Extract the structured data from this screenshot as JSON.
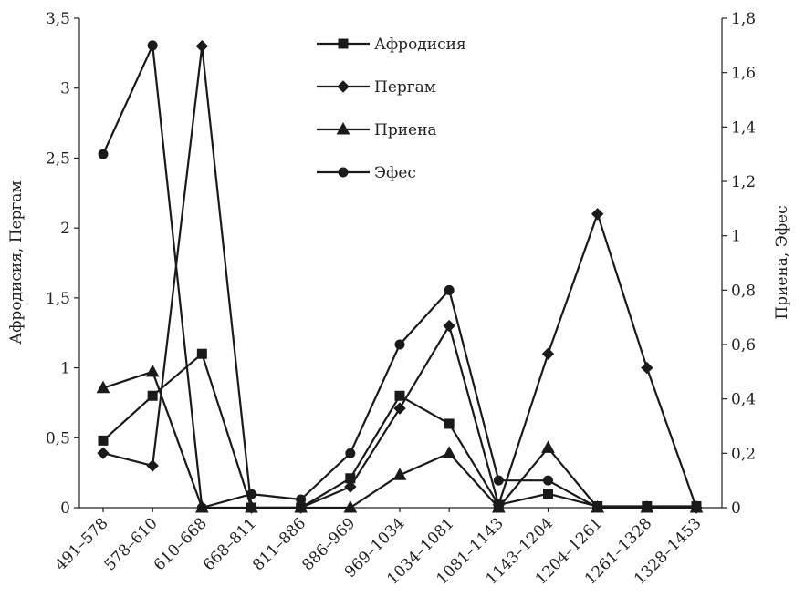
{
  "chart_data": {
    "type": "line",
    "categories": [
      "491–578",
      "578–610",
      "610–668",
      "668–811",
      "811–886",
      "886–969",
      "969–1034",
      "1034–1081",
      "1081–1143",
      "1143–1204",
      "1204–1261",
      "1261–1328",
      "1328–1453"
    ],
    "ylabel": "Афродисия, Пергам",
    "y2label": "Приена, Эфес",
    "ylim": [
      0,
      3.5
    ],
    "y2lim": [
      0,
      1.8
    ],
    "yticks": [
      "0",
      "0,5",
      "1",
      "1,5",
      "2",
      "2,5",
      "3",
      "3,5"
    ],
    "y2ticks": [
      "0",
      "0,2",
      "0,4",
      "0,6",
      "0,8",
      "1",
      "1,2",
      "1,4",
      "1,6",
      "1,8"
    ],
    "legend_position": "top-center",
    "grid": false,
    "series": [
      {
        "name": "Афродисия",
        "marker": "square",
        "axis": "left",
        "values": [
          0.48,
          0.8,
          1.1,
          0.0,
          0.0,
          0.21,
          0.8,
          0.6,
          0.02,
          0.1,
          0.01,
          0.01,
          0.01
        ]
      },
      {
        "name": "Пергам",
        "marker": "diamond",
        "axis": "left",
        "values": [
          0.39,
          0.3,
          3.3,
          0.0,
          0.0,
          0.15,
          0.71,
          1.3,
          0.02,
          1.1,
          2.1,
          1.0,
          0.0
        ]
      },
      {
        "name": "Приена",
        "marker": "triangle",
        "axis": "right",
        "values": [
          0.44,
          0.5,
          0.0,
          0.0,
          0.0,
          0.0,
          0.12,
          0.2,
          0.0,
          0.22,
          0.0,
          0.0,
          0.0
        ]
      },
      {
        "name": "Эфес",
        "marker": "circle",
        "axis": "right",
        "values": [
          1.3,
          1.7,
          0.0,
          0.05,
          0.03,
          0.2,
          0.6,
          0.8,
          0.1,
          0.1,
          0.0,
          0.0,
          0.0
        ]
      }
    ]
  }
}
